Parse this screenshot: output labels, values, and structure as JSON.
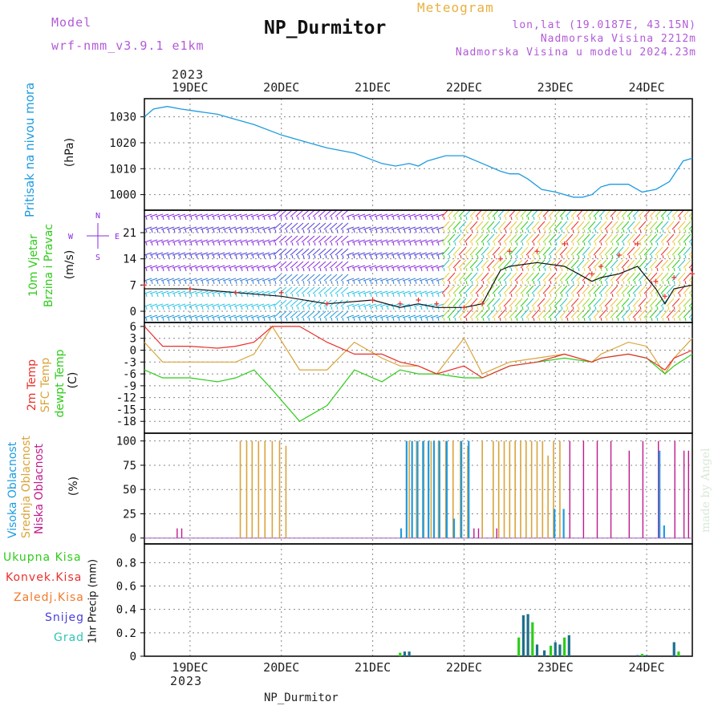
{
  "header": {
    "model_label": "Model",
    "model_name": "wrf-nmm_v3.9.1 e1km",
    "station": "NP_Durmitor",
    "meteogram": "Meteogram",
    "lonlat": "lon,lat (19.0187E, 43.15N)",
    "elevation": "Nadmorska Visina 2212m",
    "model_elevation": "Nadmorska Visina u modelu 2024.23m",
    "year_top": "2023",
    "year_bottom": "2023",
    "footer_station": "NP_Durmitor",
    "watermark": "made by Angel"
  },
  "colors": {
    "pressure": "#1e9be0",
    "wind": "#8a2be2",
    "wind_speed_max": "#e8302c",
    "wind_speed": "#111111",
    "t2m": "#e8302c",
    "sfc": "#d9a43b",
    "dewpt": "#2ecc1a",
    "high_cloud": "#1e9be0",
    "mid_cloud": "#d9a43b",
    "low_cloud": "#c01a8c",
    "total_precip": "#2ecc1a",
    "conv_precip": "#e8302c",
    "frozen_precip": "#f07a2a",
    "snow": "#4a3fd8",
    "hail": "#2ec4b6",
    "precip_bar": "#1f6f8b"
  },
  "chart_data": [
    {
      "type": "line",
      "panel": "pressure",
      "ylabel": "Pritisak na nivou mora",
      "unit": "(hPa)",
      "yticks": [
        1000,
        1010,
        1020,
        1030
      ],
      "ylim": [
        994,
        1037
      ],
      "x": [
        0,
        0.1,
        0.25,
        0.4,
        0.6,
        0.8,
        0.9,
        1.0,
        1.2,
        1.5,
        1.8,
        2.0,
        2.3,
        2.6,
        2.75,
        2.9,
        3.0,
        3.1,
        3.3,
        3.5,
        3.7,
        3.9,
        4.0,
        4.1,
        4.2,
        4.35,
        4.5,
        4.7,
        4.8,
        4.9,
        5.0,
        5.1,
        5.3,
        5.45,
        5.6,
        5.75,
        5.9,
        6.0
      ],
      "series": [
        {
          "values": [
            1030,
            1033,
            1034,
            1033,
            1032,
            1031,
            1030,
            1029,
            1027,
            1023,
            1020,
            1018,
            1016,
            1012,
            1011,
            1012,
            1011,
            1013,
            1015,
            1015,
            1012,
            1009,
            1008,
            1008,
            1006,
            1002,
            1001,
            999,
            999,
            1000,
            1003,
            1004,
            1004,
            1001,
            1002,
            1005,
            1013,
            1014
          ]
        }
      ]
    },
    {
      "type": "line",
      "panel": "wind",
      "ylabel": [
        "10m Vjetar",
        "Brzina i Pravac"
      ],
      "unit": "(m/s)",
      "compass": [
        "N",
        "E",
        "S",
        "W"
      ],
      "yticks": [
        0,
        7,
        14,
        21
      ],
      "ylim": [
        -3,
        27
      ],
      "x": [
        0,
        0.5,
        1.0,
        1.5,
        2.0,
        2.5,
        2.8,
        3.0,
        3.2,
        3.5,
        3.7,
        3.9,
        4.0,
        4.3,
        4.6,
        4.9,
        5.0,
        5.2,
        5.4,
        5.6,
        5.7,
        5.8,
        6.0
      ],
      "series": [
        {
          "values": [
            6,
            6,
            5,
            4,
            2,
            3,
            1,
            2,
            1,
            1,
            2,
            11,
            12,
            13,
            12,
            8,
            9,
            10,
            12,
            6,
            2,
            6,
            7
          ]
        },
        {
          "values": [
            7,
            6,
            5,
            5,
            2,
            3,
            2,
            3,
            2,
            1,
            2,
            14,
            16,
            16,
            18,
            10,
            12,
            15,
            18,
            8,
            4,
            9,
            10
          ]
        }
      ]
    },
    {
      "type": "line",
      "panel": "temperature",
      "ylabel": [
        "2m Temp",
        "SFC Temp",
        "dewpt Temp"
      ],
      "unit": "(C)",
      "yticks": [
        6,
        3,
        0,
        -3,
        -6,
        -9,
        -12,
        -15,
        -18
      ],
      "ylim": [
        -21,
        7
      ],
      "x": [
        0,
        0.2,
        0.5,
        0.8,
        1.0,
        1.2,
        1.4,
        1.7,
        2.0,
        2.3,
        2.6,
        2.8,
        3.0,
        3.2,
        3.5,
        3.7,
        3.9,
        4.0,
        4.3,
        4.6,
        4.9,
        5.0,
        5.3,
        5.5,
        5.7,
        5.8,
        6.0
      ],
      "series": [
        {
          "values": [
            6,
            1,
            1,
            0.5,
            1,
            2,
            6,
            6,
            2,
            -1,
            -1,
            -3,
            -4,
            -6,
            -4,
            -7,
            -5,
            -4,
            -3,
            -1,
            -3,
            -2,
            -1,
            -2,
            -5,
            -2,
            0
          ]
        },
        {
          "values": [
            2,
            -3,
            -3,
            -3,
            -3,
            -1,
            6,
            -5,
            -5,
            2,
            -2,
            -4,
            -4,
            -6,
            3,
            -6,
            -4,
            -3,
            -2,
            -1,
            -3,
            -1,
            2,
            1,
            -6,
            -2,
            3
          ]
        },
        {
          "values": [
            -5,
            -7,
            -7,
            -8,
            -7,
            -5,
            -10,
            -18,
            -14,
            -5,
            -8,
            -5,
            -6,
            -6,
            -7,
            -7,
            -5,
            -4,
            -3,
            -2,
            -3,
            -2,
            -1,
            -2,
            -6,
            -4,
            -1
          ]
        }
      ]
    },
    {
      "type": "bar",
      "panel": "cloud",
      "ylabel": [
        "Visoka Oblacnost",
        "Srednja Oblacnost",
        "Niska Oblacnost"
      ],
      "unit": "(%)",
      "yticks": [
        0,
        25,
        50,
        75,
        100
      ],
      "ylim": [
        -6,
        108
      ],
      "high": {
        "x": [
          2.82,
          2.88,
          2.94,
          3.0,
          3.06,
          3.12,
          3.18,
          3.24,
          3.32,
          3.4,
          3.48,
          3.56,
          4.5,
          4.6,
          5.65,
          5.7
        ],
        "values": [
          10,
          100,
          100,
          100,
          100,
          100,
          100,
          100,
          100,
          20,
          100,
          100,
          30,
          30,
          90,
          13
        ]
      },
      "mid": {
        "x": [
          1.05,
          1.12,
          1.18,
          1.25,
          1.32,
          1.4,
          1.48,
          1.55,
          2.9,
          2.98,
          3.06,
          3.14,
          3.22,
          3.3,
          3.38,
          3.46,
          3.54,
          3.7,
          3.82,
          3.88,
          3.94,
          4.0,
          4.06,
          4.12,
          4.18,
          4.24,
          4.3,
          4.36,
          4.42,
          4.48,
          4.55
        ],
        "values": [
          100,
          100,
          100,
          100,
          100,
          100,
          100,
          95,
          100,
          100,
          100,
          100,
          100,
          100,
          100,
          100,
          95,
          100,
          100,
          100,
          100,
          100,
          100,
          100,
          100,
          100,
          100,
          100,
          85,
          100,
          100
        ]
      },
      "low": {
        "x": [
          0.35,
          0.4,
          3.6,
          3.65,
          3.85,
          4.65,
          4.8,
          4.95,
          5.1,
          5.3,
          5.45,
          5.62,
          5.8,
          5.9,
          5.95
        ],
        "values": [
          10,
          10,
          10,
          10,
          10,
          100,
          100,
          100,
          100,
          90,
          100,
          100,
          100,
          90,
          90
        ]
      }
    },
    {
      "type": "bar",
      "panel": "precip",
      "ylabel": "1hr Precip (mm)",
      "legend": [
        "Ukupna Kisa",
        "Konvek.Kisa",
        "Zaledj.Kisa",
        "Snijeg",
        "Grad"
      ],
      "yticks": [
        0,
        0.2,
        0.4,
        0.6,
        0.8
      ],
      "ylim": [
        0,
        0.96
      ],
      "x": [
        2.8,
        2.85,
        2.9,
        4.1,
        4.15,
        4.2,
        4.25,
        4.3,
        4.38,
        4.45,
        4.5,
        4.55,
        4.6,
        4.65,
        5.4,
        5.45,
        5.5,
        5.8,
        5.85
      ],
      "values": [
        0.03,
        0.04,
        0.04,
        0.16,
        0.35,
        0.36,
        0.29,
        0.1,
        0.05,
        0.09,
        0.12,
        0.1,
        0.16,
        0.18,
        0.01,
        0.02,
        0.01,
        0.12,
        0.04
      ]
    }
  ],
  "xaxis": {
    "days": [
      "19DEC",
      "20DEC",
      "21DEC",
      "22DEC",
      "23DEC",
      "24DEC"
    ],
    "day_pos": [
      0.5,
      1.5,
      2.5,
      3.5,
      4.5,
      5.5
    ],
    "range": [
      0,
      6
    ]
  }
}
